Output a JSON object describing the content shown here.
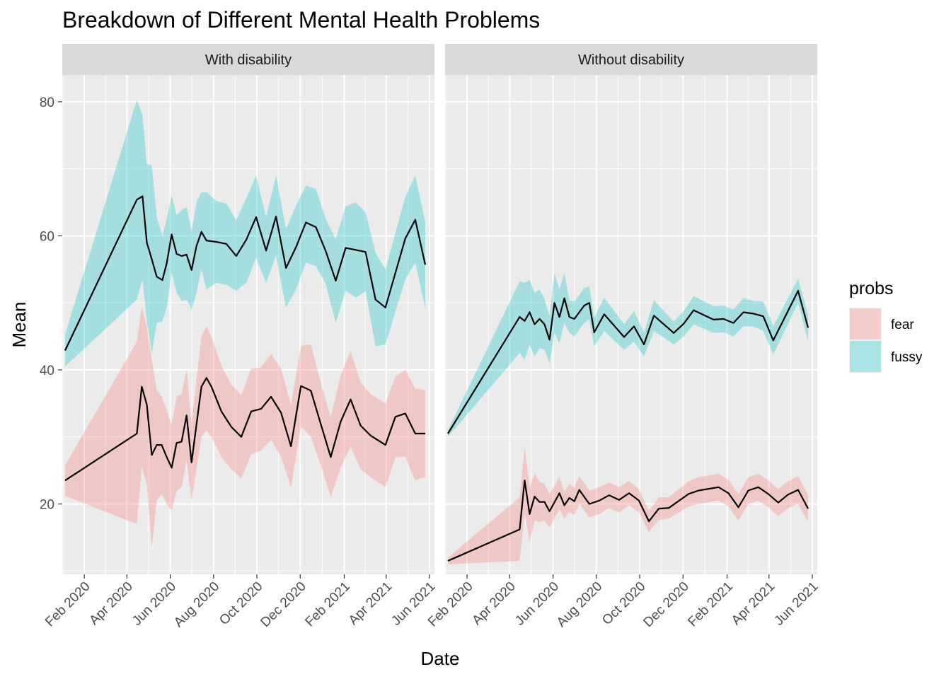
{
  "chart_data": {
    "type": "line",
    "title": "Breakdown of Different Mental Health Problems",
    "xlabel": "Date",
    "ylabel": "Mean",
    "ylim": [
      9.5,
      84
    ],
    "y_ticks": [
      20,
      40,
      60,
      80
    ],
    "x_ticks": [
      "2020-02-01",
      "2020-04-01",
      "2020-06-01",
      "2020-08-01",
      "2020-10-01",
      "2020-12-01",
      "2021-02-01",
      "2021-04-01",
      "2021-06-01"
    ],
    "x_tick_labels": [
      "Feb 2020",
      "Apr 2020",
      "Jun 2020",
      "Aug 2020",
      "Oct 2020",
      "Dec 2020",
      "Feb 2021",
      "Apr 2021",
      "Jun 2021"
    ],
    "xlim": [
      "2020-01-01",
      "2021-06-08"
    ],
    "grid": true,
    "legend": {
      "title": "probs",
      "position": "right",
      "entries": [
        {
          "label": "fear",
          "color": "#F8766D"
        },
        {
          "label": "fussy",
          "color": "#00BFC4"
        }
      ]
    },
    "panels": [
      {
        "name": "With disability",
        "series": [
          {
            "name": "fussy",
            "color": "#00BFC4",
            "points": [
              [
                "2020-01-05",
                42.9,
                40.5,
                45.3
              ],
              [
                "2020-04-15",
                65.4,
                50.5,
                80.3
              ],
              [
                "2020-04-23",
                65.9,
                53.5,
                78.0
              ],
              [
                "2020-04-29",
                59.0,
                47.3,
                70.7
              ],
              [
                "2020-05-06",
                56.5,
                42.5,
                70.5
              ],
              [
                "2020-05-13",
                53.9,
                47.0,
                62.8
              ],
              [
                "2020-05-21",
                53.4,
                47.2,
                60.0
              ],
              [
                "2020-05-27",
                55.9,
                49.3,
                62.5
              ],
              [
                "2020-06-03",
                60.2,
                54.5,
                66.0
              ],
              [
                "2020-06-10",
                57.3,
                51.5,
                63.1
              ],
              [
                "2020-06-17",
                57.0,
                50.3,
                63.8
              ],
              [
                "2020-06-24",
                57.2,
                50.5,
                64.3
              ],
              [
                "2020-07-01",
                54.9,
                49.0,
                60.7
              ],
              [
                "2020-07-08",
                58.5,
                51.5,
                65.0
              ],
              [
                "2020-07-15",
                60.6,
                55.0,
                66.5
              ],
              [
                "2020-07-22",
                59.3,
                52.0,
                66.5
              ],
              [
                "2020-08-05",
                59.1,
                53.0,
                65.2
              ],
              [
                "2020-08-19",
                58.8,
                52.7,
                64.8
              ],
              [
                "2020-09-02",
                57.0,
                51.8,
                62.3
              ],
              [
                "2020-09-16",
                59.4,
                53.0,
                65.6
              ],
              [
                "2020-09-30",
                62.8,
                56.7,
                69.0
              ],
              [
                "2020-10-14",
                57.8,
                53.0,
                62.8
              ],
              [
                "2020-10-28",
                62.9,
                57.0,
                69.0
              ],
              [
                "2020-11-11",
                55.2,
                49.3,
                61.0
              ],
              [
                "2020-11-25",
                58.3,
                52.0,
                64.5
              ],
              [
                "2020-12-09",
                62.0,
                56.0,
                67.5
              ],
              [
                "2020-12-23",
                61.3,
                55.5,
                67.0
              ],
              [
                "2021-01-06",
                57.7,
                52.8,
                62.5
              ],
              [
                "2021-01-20",
                53.3,
                47.0,
                59.5
              ],
              [
                "2021-02-03",
                58.2,
                51.8,
                64.4
              ],
              [
                "2021-02-17",
                57.9,
                50.8,
                65.0
              ],
              [
                "2021-03-03",
                57.6,
                51.7,
                63.5
              ],
              [
                "2021-03-17",
                50.5,
                43.5,
                57.5
              ],
              [
                "2021-03-31",
                49.3,
                43.8,
                55.0
              ],
              [
                "2021-04-28",
                59.6,
                53.5,
                65.8
              ],
              [
                "2021-05-12",
                62.4,
                56.0,
                69.0
              ],
              [
                "2021-05-26",
                55.7,
                49.2,
                62.0
              ]
            ]
          },
          {
            "name": "fear",
            "color": "#F8766D",
            "points": [
              [
                "2020-01-05",
                23.5,
                21.2,
                25.8
              ],
              [
                "2020-04-15",
                30.5,
                17.0,
                44.2
              ],
              [
                "2020-04-22",
                37.5,
                25.5,
                49.5
              ],
              [
                "2020-04-29",
                34.8,
                23.0,
                46.5
              ],
              [
                "2020-05-06",
                27.3,
                13.5,
                41.5
              ],
              [
                "2020-05-13",
                28.8,
                20.5,
                37.0
              ],
              [
                "2020-05-20",
                28.8,
                21.5,
                36.0
              ],
              [
                "2020-05-27",
                27.0,
                20.0,
                34.0
              ],
              [
                "2020-06-03",
                25.4,
                19.0,
                31.8
              ],
              [
                "2020-06-10",
                29.1,
                22.0,
                36.0
              ],
              [
                "2020-06-17",
                29.3,
                22.5,
                36.4
              ],
              [
                "2020-06-24",
                33.2,
                26.5,
                40.0
              ],
              [
                "2020-07-01",
                26.2,
                20.5,
                32.0
              ],
              [
                "2020-07-15",
                37.5,
                30.0,
                45.0
              ],
              [
                "2020-07-22",
                38.8,
                31.0,
                46.5
              ],
              [
                "2020-07-29",
                37.5,
                30.0,
                45.0
              ],
              [
                "2020-08-12",
                33.8,
                27.0,
                40.6
              ],
              [
                "2020-08-26",
                31.5,
                25.2,
                37.8
              ],
              [
                "2020-09-09",
                30.0,
                23.8,
                36.2
              ],
              [
                "2020-09-23",
                33.8,
                27.4,
                40.2
              ],
              [
                "2020-10-07",
                34.2,
                28.0,
                40.4
              ],
              [
                "2020-10-21",
                36.0,
                29.6,
                42.4
              ],
              [
                "2020-11-04",
                33.6,
                27.0,
                40.2
              ],
              [
                "2020-11-18",
                28.6,
                22.5,
                34.8
              ],
              [
                "2020-12-02",
                37.6,
                31.6,
                43.6
              ],
              [
                "2020-12-16",
                36.9,
                30.0,
                43.8
              ],
              [
                "2020-12-30",
                31.9,
                25.8,
                38.0
              ],
              [
                "2021-01-13",
                27.0,
                21.0,
                33.0
              ],
              [
                "2021-01-27",
                32.3,
                25.5,
                39.2
              ],
              [
                "2021-02-10",
                35.6,
                28.5,
                42.8
              ],
              [
                "2021-02-24",
                31.7,
                25.2,
                38.2
              ],
              [
                "2021-03-10",
                30.2,
                24.0,
                36.4
              ],
              [
                "2021-03-31",
                28.8,
                22.5,
                35.0
              ],
              [
                "2021-04-14",
                33.0,
                27.0,
                39.0
              ],
              [
                "2021-04-28",
                33.5,
                27.0,
                40.0
              ],
              [
                "2021-05-12",
                30.5,
                23.5,
                37.2
              ],
              [
                "2021-05-26",
                30.5,
                24.0,
                37.0
              ]
            ]
          }
        ]
      },
      {
        "name": "Without disability",
        "series": [
          {
            "name": "fussy",
            "color": "#00BFC4",
            "points": [
              [
                "2020-01-05",
                30.5,
                30.0,
                31.0
              ],
              [
                "2020-04-15",
                47.9,
                42.5,
                53.2
              ],
              [
                "2020-04-22",
                47.3,
                41.5,
                53.0
              ],
              [
                "2020-04-29",
                48.6,
                43.8,
                53.4
              ],
              [
                "2020-05-06",
                46.8,
                42.0,
                51.5
              ],
              [
                "2020-05-13",
                47.6,
                43.2,
                52.0
              ],
              [
                "2020-05-20",
                46.8,
                43.0,
                50.6
              ],
              [
                "2020-05-27",
                44.5,
                41.0,
                48.0
              ],
              [
                "2020-06-03",
                50.0,
                45.5,
                54.5
              ],
              [
                "2020-06-10",
                47.9,
                44.0,
                52.0
              ],
              [
                "2020-06-17",
                50.7,
                47.0,
                54.5
              ],
              [
                "2020-06-24",
                47.9,
                45.5,
                50.3
              ],
              [
                "2020-07-01",
                47.6,
                45.0,
                50.2
              ],
              [
                "2020-07-15",
                49.6,
                47.0,
                52.2
              ],
              [
                "2020-07-22",
                50.0,
                47.5,
                52.5
              ],
              [
                "2020-07-29",
                45.6,
                43.5,
                47.8
              ],
              [
                "2020-08-12",
                48.3,
                45.8,
                50.8
              ],
              [
                "2020-09-09",
                44.9,
                43.0,
                46.8
              ],
              [
                "2020-09-23",
                46.5,
                44.2,
                48.8
              ],
              [
                "2020-10-07",
                43.8,
                42.0,
                45.6
              ],
              [
                "2020-10-21",
                48.1,
                45.8,
                50.4
              ],
              [
                "2020-11-18",
                45.5,
                43.8,
                47.2
              ],
              [
                "2020-12-02",
                46.9,
                45.0,
                48.8
              ],
              [
                "2020-12-16",
                48.9,
                46.8,
                51.0
              ],
              [
                "2021-01-13",
                47.5,
                45.5,
                49.5
              ],
              [
                "2021-01-27",
                47.6,
                45.6,
                49.6
              ],
              [
                "2021-02-10",
                47.0,
                45.0,
                49.0
              ],
              [
                "2021-02-24",
                48.6,
                46.5,
                50.7
              ],
              [
                "2021-03-10",
                48.4,
                46.5,
                50.3
              ],
              [
                "2021-03-24",
                48.0,
                45.8,
                50.2
              ],
              [
                "2021-04-07",
                44.4,
                42.3,
                46.5
              ],
              [
                "2021-05-12",
                51.8,
                50.0,
                53.6
              ],
              [
                "2021-05-26",
                46.3,
                44.3,
                48.3
              ]
            ]
          },
          {
            "name": "fear",
            "color": "#F8766D",
            "points": [
              [
                "2020-01-05",
                11.5,
                11.0,
                12.0
              ],
              [
                "2020-04-15",
                16.2,
                11.5,
                21.0
              ],
              [
                "2020-04-22",
                23.5,
                18.5,
                28.5
              ],
              [
                "2020-04-29",
                18.5,
                14.5,
                22.5
              ],
              [
                "2020-05-06",
                21.1,
                17.5,
                24.5
              ],
              [
                "2020-05-13",
                20.3,
                17.3,
                23.3
              ],
              [
                "2020-05-20",
                20.3,
                17.5,
                23.0
              ],
              [
                "2020-05-27",
                18.9,
                16.5,
                21.5
              ],
              [
                "2020-06-10",
                21.6,
                19.2,
                24.0
              ],
              [
                "2020-06-17",
                19.8,
                17.8,
                21.8
              ],
              [
                "2020-06-24",
                20.9,
                18.8,
                23.0
              ],
              [
                "2020-07-01",
                20.4,
                18.4,
                22.4
              ],
              [
                "2020-07-08",
                22.1,
                20.0,
                24.2
              ],
              [
                "2020-07-22",
                20.0,
                18.0,
                22.0
              ],
              [
                "2020-08-05",
                20.5,
                18.5,
                22.5
              ],
              [
                "2020-08-19",
                21.3,
                19.4,
                23.2
              ],
              [
                "2020-09-02",
                20.6,
                18.7,
                22.5
              ],
              [
                "2020-09-16",
                21.6,
                19.8,
                23.4
              ],
              [
                "2020-09-30",
                20.5,
                18.8,
                22.2
              ],
              [
                "2020-10-14",
                17.4,
                15.8,
                19.0
              ],
              [
                "2020-10-28",
                19.3,
                17.6,
                21.0
              ],
              [
                "2020-11-11",
                19.4,
                17.8,
                21.0
              ],
              [
                "2020-12-09",
                21.5,
                19.6,
                23.4
              ],
              [
                "2020-12-23",
                22.0,
                20.0,
                24.0
              ],
              [
                "2021-01-20",
                22.5,
                20.5,
                24.5
              ],
              [
                "2021-02-03",
                21.6,
                19.6,
                23.6
              ],
              [
                "2021-02-17",
                19.5,
                17.5,
                21.5
              ],
              [
                "2021-03-03",
                22.0,
                20.0,
                24.0
              ],
              [
                "2021-03-17",
                22.5,
                20.5,
                24.5
              ],
              [
                "2021-03-31",
                21.5,
                19.5,
                23.5
              ],
              [
                "2021-04-14",
                20.2,
                18.2,
                22.2
              ],
              [
                "2021-04-28",
                21.4,
                19.4,
                23.4
              ],
              [
                "2021-05-12",
                22.1,
                20.0,
                24.2
              ],
              [
                "2021-05-26",
                19.3,
                17.3,
                21.3
              ]
            ]
          }
        ]
      }
    ]
  }
}
